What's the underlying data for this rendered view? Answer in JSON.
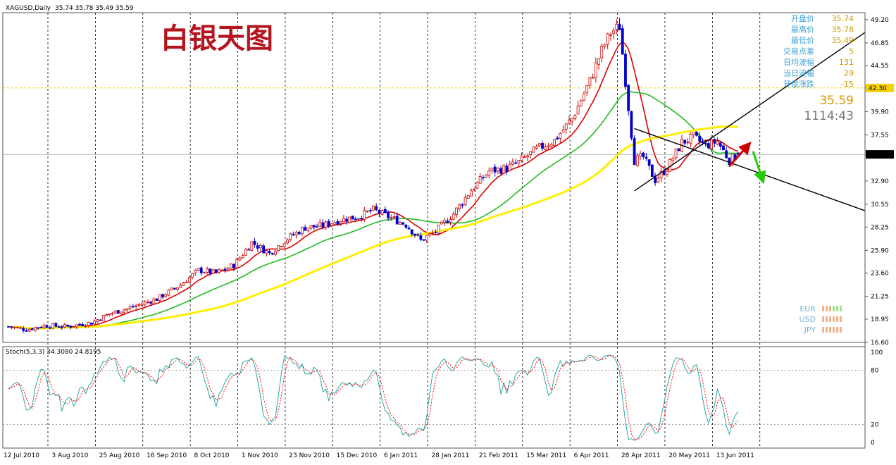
{
  "chart_data": [
    {
      "type": "candlestick",
      "symbol_label": "XAGUSD,Daily",
      "ohlc_label": "35.74 35.78 35.49 35.59",
      "title": "白银天图",
      "x_ticks": [
        "12 Jul 2010",
        "3 Aug 2010",
        "25 Aug 2010",
        "16 Sep 2010",
        "8 Oct 2010",
        "1 Nov 2010",
        "23 Nov 2010",
        "15 Dec 2010",
        "6 Jan 2011",
        "28 Jan 2011",
        "21 Feb 2011",
        "15 Mar 2011",
        "6 Apr 2011",
        "28 Apr 2011",
        "20 May 2011",
        "13 Jun 2011"
      ],
      "y_ticks": [
        "49.20",
        "46.85",
        "44.55",
        "42.30",
        "39.90",
        "37.55",
        "35.59",
        "32.90",
        "30.55",
        "28.25",
        "25.90",
        "23.60",
        "21.25",
        "18.95",
        "16.60"
      ],
      "ylim": [
        16.6,
        49.9
      ],
      "last_price": 35.59,
      "h_line_level": 42.3,
      "close_series_anchor": [
        [
          0,
          18.2
        ],
        [
          6,
          17.9
        ],
        [
          12,
          18.3
        ],
        [
          20,
          18.2
        ],
        [
          28,
          18.6
        ],
        [
          34,
          19.5
        ],
        [
          40,
          20.0
        ],
        [
          50,
          21.0
        ],
        [
          58,
          22.4
        ],
        [
          64,
          23.9
        ],
        [
          70,
          23.6
        ],
        [
          76,
          24.4
        ],
        [
          82,
          26.7
        ],
        [
          88,
          25.6
        ],
        [
          94,
          27.1
        ],
        [
          100,
          28.2
        ],
        [
          106,
          28.4
        ],
        [
          112,
          29.0
        ],
        [
          118,
          29.3
        ],
        [
          123,
          30.0
        ],
        [
          128,
          29.3
        ],
        [
          134,
          28.5
        ],
        [
          139,
          26.9
        ],
        [
          144,
          27.8
        ],
        [
          150,
          29.6
        ],
        [
          156,
          32.0
        ],
        [
          162,
          33.9
        ],
        [
          168,
          34.2
        ],
        [
          172,
          34.8
        ],
        [
          178,
          36.1
        ],
        [
          184,
          37.0
        ],
        [
          190,
          39.2
        ],
        [
          196,
          43.0
        ],
        [
          200,
          46.1
        ],
        [
          203,
          47.9
        ],
        [
          206,
          48.5
        ],
        [
          208,
          43.0
        ],
        [
          211,
          35.0
        ],
        [
          214,
          35.3
        ],
        [
          218,
          33.0
        ],
        [
          222,
          34.2
        ],
        [
          227,
          36.8
        ],
        [
          231,
          37.3
        ],
        [
          235,
          36.5
        ],
        [
          239,
          36.9
        ],
        [
          243,
          35.0
        ],
        [
          246,
          35.59
        ]
      ],
      "indicators": {
        "ma_red_name": "",
        "ma_green_name": "",
        "ma_yellow_name": ""
      },
      "annotations": {
        "trendline_up_color": "#000000",
        "trendline_down_color": "#000000",
        "arrow_up_color": "#cc0000",
        "arrow_down_color": "#22cc00"
      },
      "info_panel": {
        "rows": [
          {
            "label": "开盘价",
            "value": "35.74"
          },
          {
            "label": "最高价",
            "value": "35.78"
          },
          {
            "label": "最低价",
            "value": "35.49"
          },
          {
            "label": "交易点差",
            "value": "5"
          },
          {
            "label": "日均波幅",
            "value": "131"
          },
          {
            "label": "当日波幅",
            "value": "29"
          },
          {
            "label": "开盘涨跌",
            "value": "-15"
          }
        ],
        "big_price": "35.59",
        "countdown": "1114:43",
        "currencies": [
          "EUR",
          "USD",
          "JPY"
        ]
      },
      "colors": {
        "up_candle": "#cc0000",
        "down_candle": "#0000cc",
        "ma_red": "#dd0000",
        "ma_green": "#22bb22",
        "ma_yellow": "#ffee00",
        "accent": "#b4141e"
      }
    },
    {
      "type": "line",
      "title": "",
      "label": "Stoch(5,3,3) 34.3080 24.8195",
      "y_ticks": [
        "100",
        "80",
        "20",
        "0"
      ],
      "ylim": [
        0,
        100
      ],
      "levels": [
        80,
        20
      ],
      "series": [
        {
          "name": "",
          "color": "#2aa7a7"
        },
        {
          "name": "",
          "color": "#ff0000"
        }
      ]
    }
  ]
}
